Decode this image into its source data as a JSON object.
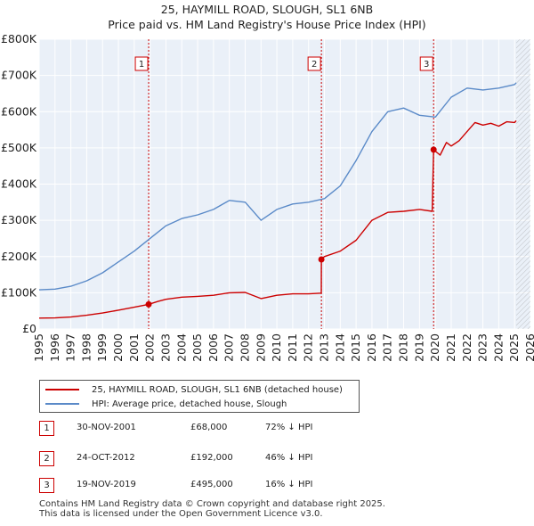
{
  "chart_data": {
    "type": "line",
    "title": "25, HAYMILL ROAD, SLOUGH, SL1 6NB",
    "subtitle": "Price paid vs. HM Land Registry's House Price Index (HPI)",
    "xlabel": "",
    "ylabel": "",
    "xlim": [
      1995,
      2026
    ],
    "ylim": [
      0,
      800000
    ],
    "x_ticks": [
      "1995",
      "1996",
      "1997",
      "1998",
      "1999",
      "2000",
      "2001",
      "2002",
      "2003",
      "2004",
      "2005",
      "2006",
      "2007",
      "2008",
      "2009",
      "2010",
      "2011",
      "2012",
      "2013",
      "2014",
      "2015",
      "2016",
      "2017",
      "2018",
      "2019",
      "2020",
      "2021",
      "2022",
      "2023",
      "2024",
      "2025",
      "2026"
    ],
    "y_ticks": [
      {
        "value": 0,
        "label": "£0"
      },
      {
        "value": 100000,
        "label": "£100K"
      },
      {
        "value": 200000,
        "label": "£200K"
      },
      {
        "value": 300000,
        "label": "£300K"
      },
      {
        "value": 400000,
        "label": "£400K"
      },
      {
        "value": 500000,
        "label": "£500K"
      },
      {
        "value": 600000,
        "label": "£600K"
      },
      {
        "value": 700000,
        "label": "£700K"
      },
      {
        "value": 800000,
        "label": "£800K"
      }
    ],
    "grid": true,
    "future_hatch_start": 2025.1,
    "series": [
      {
        "name": "25, HAYMILL ROAD, SLOUGH, SL1 6NB (detached house)",
        "color": "#cc0000",
        "points": [
          [
            1995,
            30000
          ],
          [
            1996,
            30500
          ],
          [
            1997,
            33000
          ],
          [
            1998,
            38000
          ],
          [
            1999,
            44000
          ],
          [
            2000,
            52000
          ],
          [
            2001,
            60000
          ],
          [
            2001.9,
            68000
          ],
          [
            2002.5,
            76000
          ],
          [
            2003,
            82000
          ],
          [
            2004,
            88000
          ],
          [
            2005,
            90000
          ],
          [
            2006,
            93000
          ],
          [
            2007,
            100000
          ],
          [
            2008,
            101000
          ],
          [
            2009,
            84000
          ],
          [
            2010,
            93000
          ],
          [
            2011,
            97000
          ],
          [
            2012,
            97000
          ],
          [
            2012.8,
            99000
          ],
          [
            2012.81,
            192000
          ],
          [
            2013,
            200000
          ],
          [
            2014,
            215000
          ],
          [
            2015,
            245000
          ],
          [
            2016,
            300000
          ],
          [
            2017,
            322000
          ],
          [
            2018,
            325000
          ],
          [
            2019,
            330000
          ],
          [
            2019.8,
            325000
          ],
          [
            2019.89,
            495000
          ],
          [
            2020.3,
            480000
          ],
          [
            2020.7,
            515000
          ],
          [
            2021,
            505000
          ],
          [
            2021.5,
            520000
          ],
          [
            2022,
            545000
          ],
          [
            2022.5,
            570000
          ],
          [
            2023,
            563000
          ],
          [
            2023.5,
            568000
          ],
          [
            2024,
            560000
          ],
          [
            2024.5,
            572000
          ],
          [
            2025,
            570000
          ],
          [
            2025.1,
            575000
          ]
        ]
      },
      {
        "name": "HPI: Average price, detached house, Slough",
        "color": "#5a8ac8",
        "points": [
          [
            1995,
            108000
          ],
          [
            1996,
            110000
          ],
          [
            1997,
            118000
          ],
          [
            1998,
            133000
          ],
          [
            1999,
            155000
          ],
          [
            2000,
            185000
          ],
          [
            2001,
            215000
          ],
          [
            2002,
            250000
          ],
          [
            2003,
            285000
          ],
          [
            2004,
            305000
          ],
          [
            2005,
            315000
          ],
          [
            2006,
            330000
          ],
          [
            2007,
            355000
          ],
          [
            2008,
            350000
          ],
          [
            2009,
            300000
          ],
          [
            2010,
            330000
          ],
          [
            2011,
            345000
          ],
          [
            2012,
            350000
          ],
          [
            2013,
            360000
          ],
          [
            2014,
            395000
          ],
          [
            2015,
            465000
          ],
          [
            2016,
            545000
          ],
          [
            2017,
            600000
          ],
          [
            2018,
            610000
          ],
          [
            2019,
            590000
          ],
          [
            2020,
            585000
          ],
          [
            2021,
            640000
          ],
          [
            2022,
            665000
          ],
          [
            2023,
            660000
          ],
          [
            2024,
            665000
          ],
          [
            2025,
            675000
          ],
          [
            2025.1,
            680000
          ]
        ]
      }
    ],
    "sales": [
      {
        "id": "1",
        "x": 2001.91,
        "price": 68000,
        "date": "30-NOV-2001",
        "price_label": "£68,000",
        "hpi_label": "72% ↓ HPI"
      },
      {
        "id": "2",
        "x": 2012.81,
        "price": 192000,
        "date": "24-OCT-2012",
        "price_label": "£192,000",
        "hpi_label": "46% ↓ HPI"
      },
      {
        "id": "3",
        "x": 2019.89,
        "price": 495000,
        "date": "19-NOV-2019",
        "price_label": "£495,000",
        "hpi_label": "16% ↓ HPI"
      }
    ]
  },
  "legend": {
    "property_label": "25, HAYMILL ROAD, SLOUGH, SL1 6NB (detached house)",
    "hpi_label": "HPI: Average price, detached house, Slough",
    "property_color": "#cc0000",
    "hpi_color": "#5a8ac8"
  },
  "footer": {
    "line1": "Contains HM Land Registry data © Crown copyright and database right 2025.",
    "line2": "This data is licensed under the Open Government Licence v3.0."
  }
}
